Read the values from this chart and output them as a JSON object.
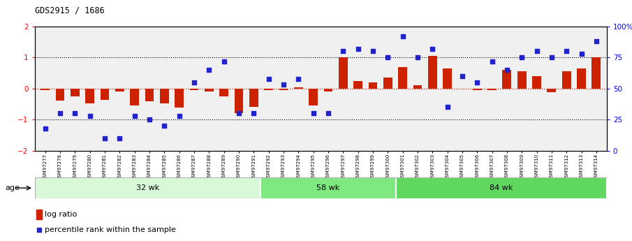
{
  "title": "GDS2915 / 1686",
  "samples": [
    "GSM97277",
    "GSM97278",
    "GSM97279",
    "GSM97280",
    "GSM97281",
    "GSM97282",
    "GSM97283",
    "GSM97284",
    "GSM97285",
    "GSM97286",
    "GSM97287",
    "GSM97288",
    "GSM97289",
    "GSM97290",
    "GSM97291",
    "GSM97292",
    "GSM97293",
    "GSM97294",
    "GSM97295",
    "GSM97296",
    "GSM97297",
    "GSM97298",
    "GSM97299",
    "GSM97300",
    "GSM97301",
    "GSM97302",
    "GSM97303",
    "GSM97304",
    "GSM97305",
    "GSM97306",
    "GSM97307",
    "GSM97308",
    "GSM97309",
    "GSM97310",
    "GSM97311",
    "GSM97312",
    "GSM97313",
    "GSM97314"
  ],
  "log_ratio": [
    -0.05,
    -0.38,
    -0.25,
    -0.47,
    -0.37,
    -0.1,
    -0.55,
    -0.4,
    -0.48,
    -0.62,
    -0.05,
    -0.1,
    -0.25,
    -0.8,
    -0.6,
    -0.05,
    -0.05,
    0.05,
    -0.55,
    -0.1,
    1.0,
    0.25,
    0.2,
    0.35,
    0.7,
    0.1,
    1.05,
    0.65,
    0.0,
    -0.05,
    -0.05,
    0.6,
    0.55,
    0.4,
    -0.12,
    0.55,
    0.65,
    1.0
  ],
  "percentile_rank": [
    18,
    30,
    30,
    28,
    10,
    10,
    28,
    25,
    20,
    28,
    55,
    65,
    72,
    30,
    30,
    58,
    53,
    58,
    30,
    30,
    80,
    82,
    80,
    75,
    92,
    75,
    82,
    35,
    60,
    55,
    72,
    65,
    75,
    80,
    75,
    80,
    78,
    88
  ],
  "groups": [
    {
      "label": "32 wk",
      "start": 0,
      "end": 15,
      "color": "#d8f8d8"
    },
    {
      "label": "58 wk",
      "start": 15,
      "end": 24,
      "color": "#80e880"
    },
    {
      "label": "84 wk",
      "start": 24,
      "end": 38,
      "color": "#60d860"
    }
  ],
  "bar_color": "#cc2200",
  "dot_color": "#2222cc",
  "ylim_left": [
    -2,
    2
  ],
  "ylim_right": [
    0,
    100
  ],
  "zero_line_color": "#cc2200",
  "legend_log_ratio": "log ratio",
  "legend_percentile": "percentile rank within the sample",
  "plot_bg": "#f0f0f0"
}
